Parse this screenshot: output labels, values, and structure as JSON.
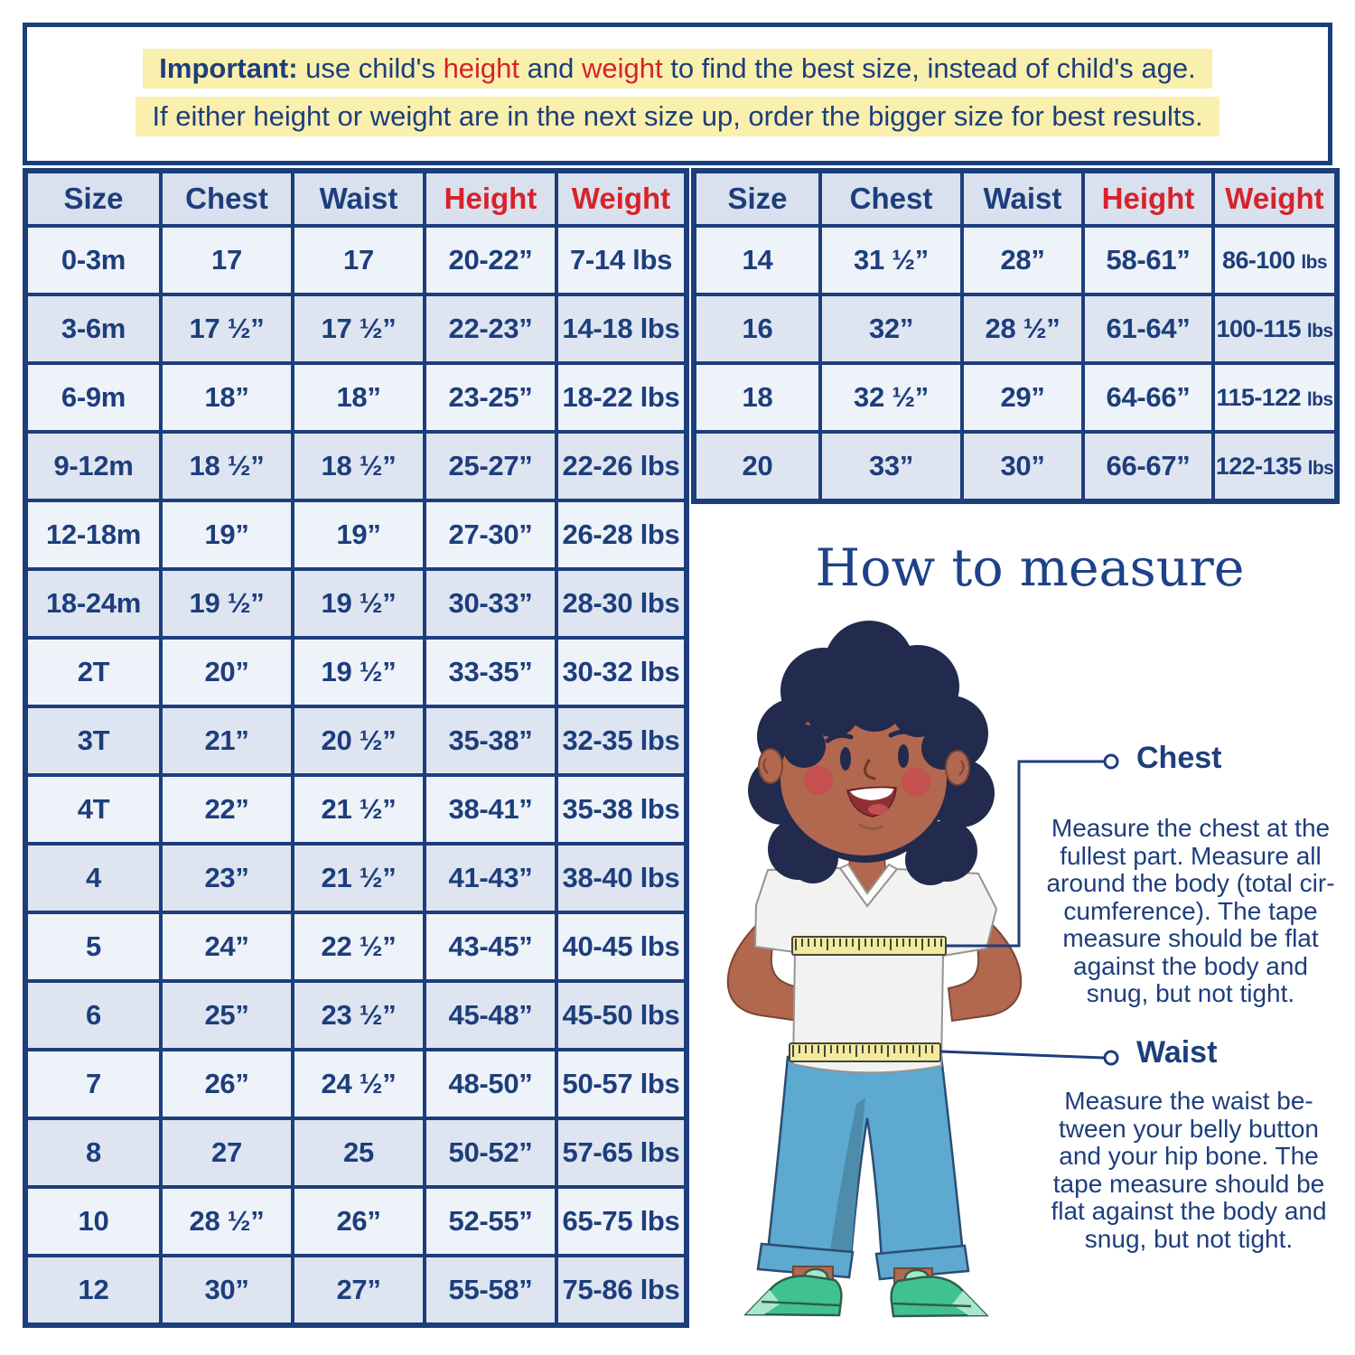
{
  "notice": {
    "important": "Important:",
    "line1_pre": " use child's ",
    "line1_height": "height",
    "line1_mid": " and ",
    "line1_weight": "weight",
    "line1_post": " to find the best size, instead of child's age.",
    "line2": "If either height or weight are in the next size up, order the bigger size for best results."
  },
  "tables": {
    "headers": [
      "Size",
      "Chest",
      "Waist",
      "Height",
      "Weight"
    ],
    "baby_toddler_rows": [
      [
        "0-3m",
        "17",
        "17",
        "20-22”",
        "7-14 lbs"
      ],
      [
        "3-6m",
        "17 ½”",
        "17 ½”",
        "22-23”",
        "14-18 lbs"
      ],
      [
        "6-9m",
        "18”",
        "18”",
        "23-25”",
        "18-22 lbs"
      ],
      [
        "9-12m",
        "18 ½”",
        "18 ½”",
        "25-27”",
        "22-26 lbs"
      ],
      [
        "12-18m",
        "19”",
        "19”",
        "27-30”",
        "26-28 lbs"
      ],
      [
        "18-24m",
        "19 ½”",
        "19 ½”",
        "30-33”",
        "28-30 lbs"
      ],
      [
        "2T",
        "20”",
        "19 ½”",
        "33-35”",
        "30-32 lbs"
      ],
      [
        "3T",
        "21”",
        "20 ½”",
        "35-38”",
        "32-35 lbs"
      ],
      [
        "4T",
        "22”",
        "21 ½”",
        "38-41”",
        "35-38 lbs"
      ],
      [
        "4",
        "23”",
        "21 ½”",
        "41-43”",
        "38-40 lbs"
      ],
      [
        "5",
        "24”",
        "22 ½”",
        "43-45”",
        "40-45 lbs"
      ],
      [
        "6",
        "25”",
        "23 ½”",
        "45-48”",
        "45-50 lbs"
      ],
      [
        "7",
        "26”",
        "24 ½”",
        "48-50”",
        "50-57 lbs"
      ],
      [
        "8",
        "27",
        "25",
        "50-52”",
        "57-65 lbs"
      ],
      [
        "10",
        "28 ½”",
        "26”",
        "52-55”",
        "65-75 lbs"
      ],
      [
        "12",
        "30”",
        "27”",
        "55-58”",
        "75-86 lbs"
      ]
    ],
    "big_kid_rows": [
      [
        "14",
        "31 ½”",
        "28”",
        "58-61”",
        "86-100 lbs"
      ],
      [
        "16",
        "32”",
        "28 ½”",
        "61-64”",
        "100-115 lbs"
      ],
      [
        "18",
        "32 ½”",
        "29”",
        "64-66”",
        "115-122 lbs"
      ],
      [
        "20",
        "33”",
        "30”",
        "66-67”",
        "122-135 lbs"
      ]
    ]
  },
  "how_to_measure": {
    "title": "How to measure",
    "chest_label": "Chest",
    "chest_text": "Measure the chest at the\nfullest part. Measure all\naround the body (total cir-\ncumference). The tape\nmeasure should be flat\nagainst the body and\nsnug, but not tight.",
    "waist_label": "Waist",
    "waist_text": "Measure the waist be-\ntween your belly button\nand your hip bone. The\ntape measure should be\nflat against the body and\nsnug, but not tight."
  },
  "colors": {
    "navy": "#1d3e7c",
    "red": "#d7222b",
    "highlight_yellow": "#faf0ad",
    "row_light": "#eef2f9",
    "row_dark": "#dee5f1",
    "header_row": "#d9e1ee",
    "tape_yellow": "#f3ea9e",
    "pants_blue": "#5da9cf",
    "shoe_teal": "#3fc290",
    "skin": "#b2674f",
    "hair": "#222a4d"
  }
}
